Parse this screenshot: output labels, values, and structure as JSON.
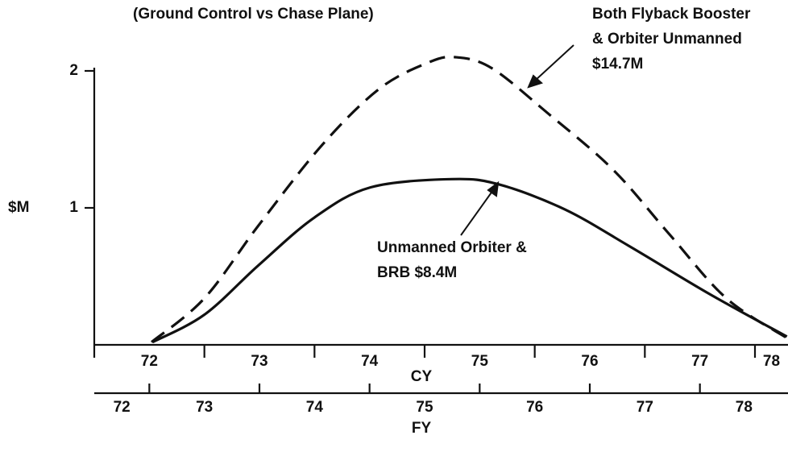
{
  "chart_data": {
    "type": "line",
    "title": "(Ground Control vs Chase Plane)",
    "ylabel": "$M",
    "xlabel": "CY",
    "xlim": [
      72,
      78.3
    ],
    "xticks": [
      72,
      73,
      74,
      75,
      76,
      77,
      78
    ],
    "ylim": [
      0,
      2.1
    ],
    "yticks": [
      1,
      2
    ],
    "fy_axis": {
      "label": "FY",
      "ticks": [
        72.5,
        73.5,
        74.5,
        75.5,
        76.5,
        77.5
      ],
      "labels": [
        72,
        73,
        74,
        75,
        76,
        77,
        78
      ]
    },
    "series": [
      {
        "style": "dashed",
        "color": "#111",
        "x": [
          72.52,
          73.0,
          73.49,
          74.07,
          74.59,
          75.03,
          75.28,
          75.61,
          76.12,
          76.71,
          77.22,
          77.74,
          78.29
        ],
        "values": [
          0.02,
          0.34,
          0.87,
          1.46,
          1.87,
          2.06,
          2.1,
          2.02,
          1.69,
          1.28,
          0.81,
          0.34,
          0.05
        ]
      },
      {
        "style": "solid",
        "color": "#111",
        "x": [
          72.53,
          73.0,
          73.49,
          74.0,
          74.51,
          75.25,
          75.68,
          76.27,
          76.86,
          77.59,
          78.29
        ],
        "values": [
          0.02,
          0.22,
          0.58,
          0.93,
          1.15,
          1.21,
          1.17,
          0.99,
          0.72,
          0.37,
          0.06
        ]
      }
    ],
    "annotations": [
      {
        "lines": [
          "Both Flyback Booster",
          "& Orbiter Unmanned",
          "$14.7M"
        ]
      },
      {
        "lines": [
          "Unmanned Orbiter &",
          "BRB $8.4M"
        ]
      }
    ]
  }
}
